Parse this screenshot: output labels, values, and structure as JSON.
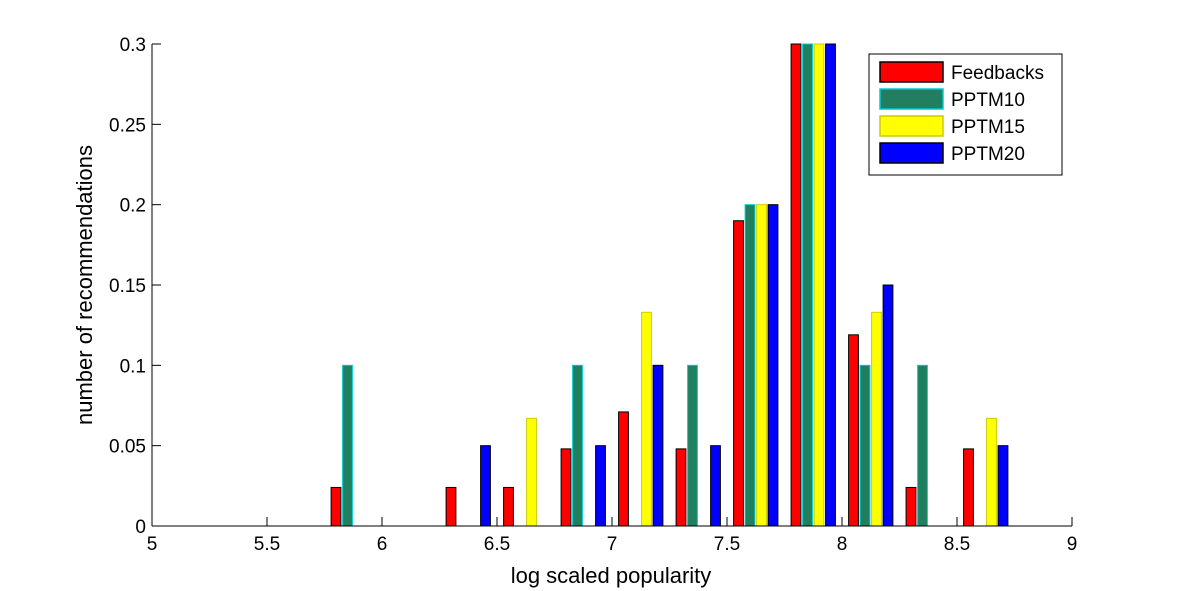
{
  "chart_data": {
    "type": "bar",
    "title": "",
    "xlabel": "log scaled popularity",
    "ylabel": "number of recommendations",
    "xlim": [
      5,
      9
    ],
    "ylim": [
      0,
      0.3
    ],
    "xticks": [
      5,
      5.5,
      6,
      6.5,
      7,
      7.5,
      8,
      8.5,
      9
    ],
    "xtick_labels": [
      "5",
      "5.5",
      "6",
      "6.5",
      "7",
      "7.5",
      "8",
      "8.5",
      "9"
    ],
    "yticks": [
      0,
      0.05,
      0.1,
      0.15,
      0.2,
      0.25,
      0.3
    ],
    "ytick_labels": [
      "0",
      "0.05",
      "0.1",
      "0.15",
      "0.2",
      "0.25",
      "0.3"
    ],
    "grid": false,
    "legend_position": "top-right",
    "x": [
      5.125,
      5.375,
      5.625,
      5.875,
      6.125,
      6.375,
      6.625,
      6.875,
      7.125,
      7.375,
      7.625,
      7.875,
      8.125,
      8.375,
      8.625,
      8.875
    ],
    "series": [
      {
        "name": "Feedbacks",
        "color": "#ff0000",
        "edge": "#000000",
        "values": [
          0,
          0,
          0,
          0.024,
          0,
          0.024,
          0.024,
          0.048,
          0.071,
          0.048,
          0.19,
          0.3,
          0.119,
          0.024,
          0.048,
          0
        ]
      },
      {
        "name": "PPTM10",
        "color": "#1f7f5f",
        "edge": "#00cccc",
        "values": [
          0,
          0,
          0,
          0.1,
          0,
          0,
          0,
          0.1,
          0,
          0.1,
          0.2,
          0.3,
          0.1,
          0.1,
          0,
          0
        ]
      },
      {
        "name": "PPTM15",
        "color": "#ffff00",
        "edge": "#cccc00",
        "values": [
          0,
          0,
          0,
          0,
          0,
          0,
          0.067,
          0,
          0.133,
          0,
          0.2,
          0.3,
          0.133,
          0,
          0.067,
          0
        ]
      },
      {
        "name": "PPTM20",
        "color": "#0000ff",
        "edge": "#000000",
        "values": [
          0,
          0,
          0,
          0,
          0,
          0.05,
          0,
          0.05,
          0.1,
          0.05,
          0.2,
          0.3,
          0.15,
          0,
          0.05,
          0
        ]
      }
    ]
  }
}
